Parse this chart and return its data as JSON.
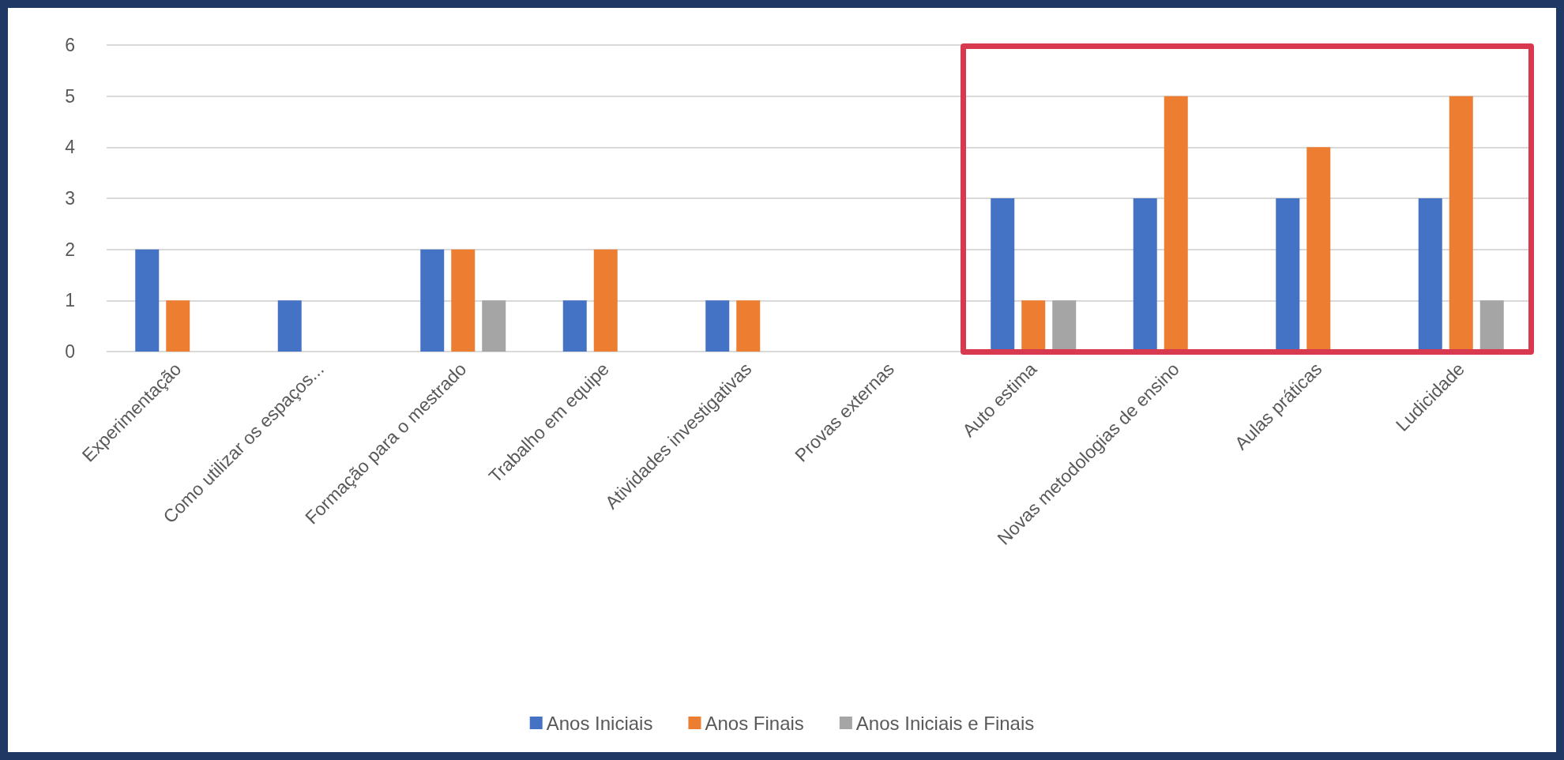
{
  "chart_data": {
    "type": "bar",
    "categories": [
      "Experimentação",
      "Como utilizar os espaços...",
      "Formação para o mestrado",
      "Trabalho em equipe",
      "Atividades investigativas",
      "Provas externas",
      "Auto estima",
      "Novas metodologias de ensino",
      "Aulas práticas",
      "Ludicidade"
    ],
    "series": [
      {
        "name": "Anos Iniciais",
        "color": "#4472c4",
        "values": [
          2,
          1,
          2,
          1,
          1,
          null,
          3,
          3,
          3,
          3
        ]
      },
      {
        "name": "Anos Finais",
        "color": "#ed7d31",
        "values": [
          1,
          null,
          2,
          2,
          1,
          null,
          1,
          5,
          4,
          5
        ]
      },
      {
        "name": "Anos Iniciais e Finais",
        "color": "#a5a5a5",
        "values": [
          null,
          null,
          1,
          null,
          null,
          null,
          1,
          null,
          null,
          1
        ]
      }
    ],
    "ylim": [
      0,
      6
    ],
    "yticks": [
      0,
      1,
      2,
      3,
      4,
      5,
      6
    ],
    "grid": "y",
    "legend": "bottom"
  }
}
